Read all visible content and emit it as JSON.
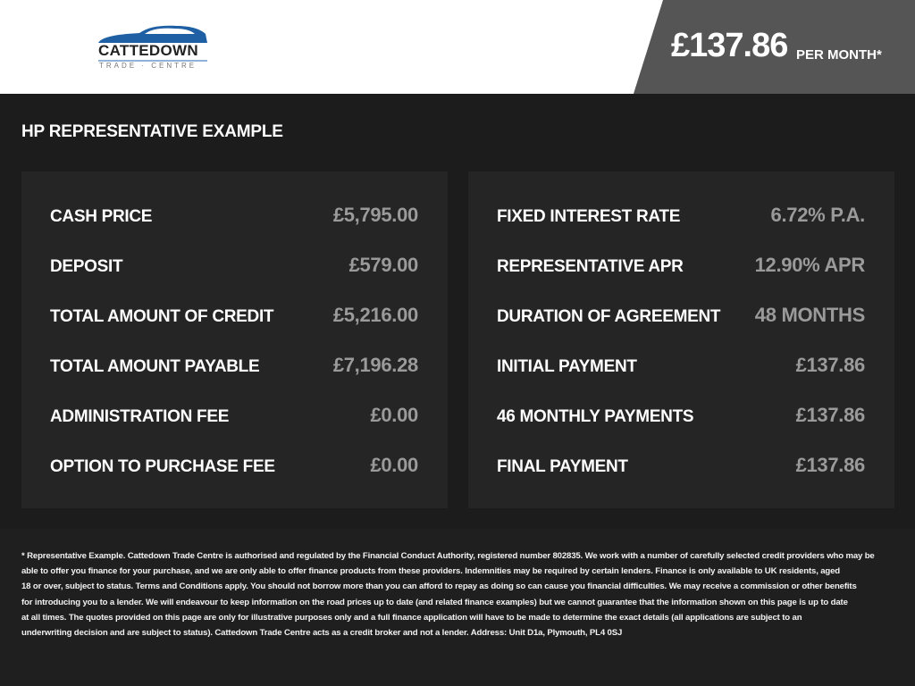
{
  "header": {
    "logo": {
      "name": "CATTEDOWN",
      "sub": "TRADE · CENTRE"
    },
    "price": "£137.86",
    "per_month": "PER MONTH*"
  },
  "title": "HP REPRESENTATIVE EXAMPLE",
  "left": [
    {
      "label": "CASH PRICE",
      "value": "£5,795.00"
    },
    {
      "label": "DEPOSIT",
      "value": "£579.00"
    },
    {
      "label": "TOTAL AMOUNT OF CREDIT",
      "value": "£5,216.00"
    },
    {
      "label": "TOTAL AMOUNT PAYABLE",
      "value": "£7,196.28"
    },
    {
      "label": "ADMINISTRATION FEE",
      "value": "£0.00"
    },
    {
      "label": "OPTION TO PURCHASE FEE",
      "value": "£0.00"
    }
  ],
  "right": [
    {
      "label": "FIXED INTEREST RATE",
      "value": "6.72% P.A."
    },
    {
      "label": "REPRESENTATIVE APR",
      "value": "12.90% APR"
    },
    {
      "label": "DURATION OF AGREEMENT",
      "value": "48 MONTHS"
    },
    {
      "label": "INITIAL PAYMENT",
      "value": "£137.86"
    },
    {
      "label": "46 MONTHLY PAYMENTS",
      "value": "£137.86"
    },
    {
      "label": "FINAL PAYMENT",
      "value": "£137.86"
    }
  ],
  "footer": [
    "* Representative Example. Cattedown Trade Centre is authorised and regulated by the Financial Conduct Authority, registered number 802835. We work with a number of carefully selected credit providers who may be",
    "able to offer you finance for your purchase, and we are only able to offer finance products from these providers. Indemnities may be required by certain lenders. Finance is only available to UK residents, aged",
    "18 or over, subject to status. Terms and Conditions apply. You should not borrow more than you can afford to repay as doing so can cause you financial difficulties. We may receive a commission or other benefits",
    "for introducing you to a lender. We will endeavour to keep information on the road prices up to date (and related finance examples) but we cannot guarantee that the information shown on this page is up to date",
    "at all times. The quotes provided on this page are only for illustrative purposes only and a full finance application will have to be made to determine the exact details (all applications are subject to an",
    "underwriting decision and are subject to status). Cattedown Trade Centre acts as a credit broker and not a lender. Address: Unit D1a, Plymouth, PL4 0SJ"
  ],
  "colors": {
    "logo_blue": "#1f5fa3",
    "panel": "#252525",
    "value": "#9a9a9a",
    "price_bg": "#555555"
  }
}
